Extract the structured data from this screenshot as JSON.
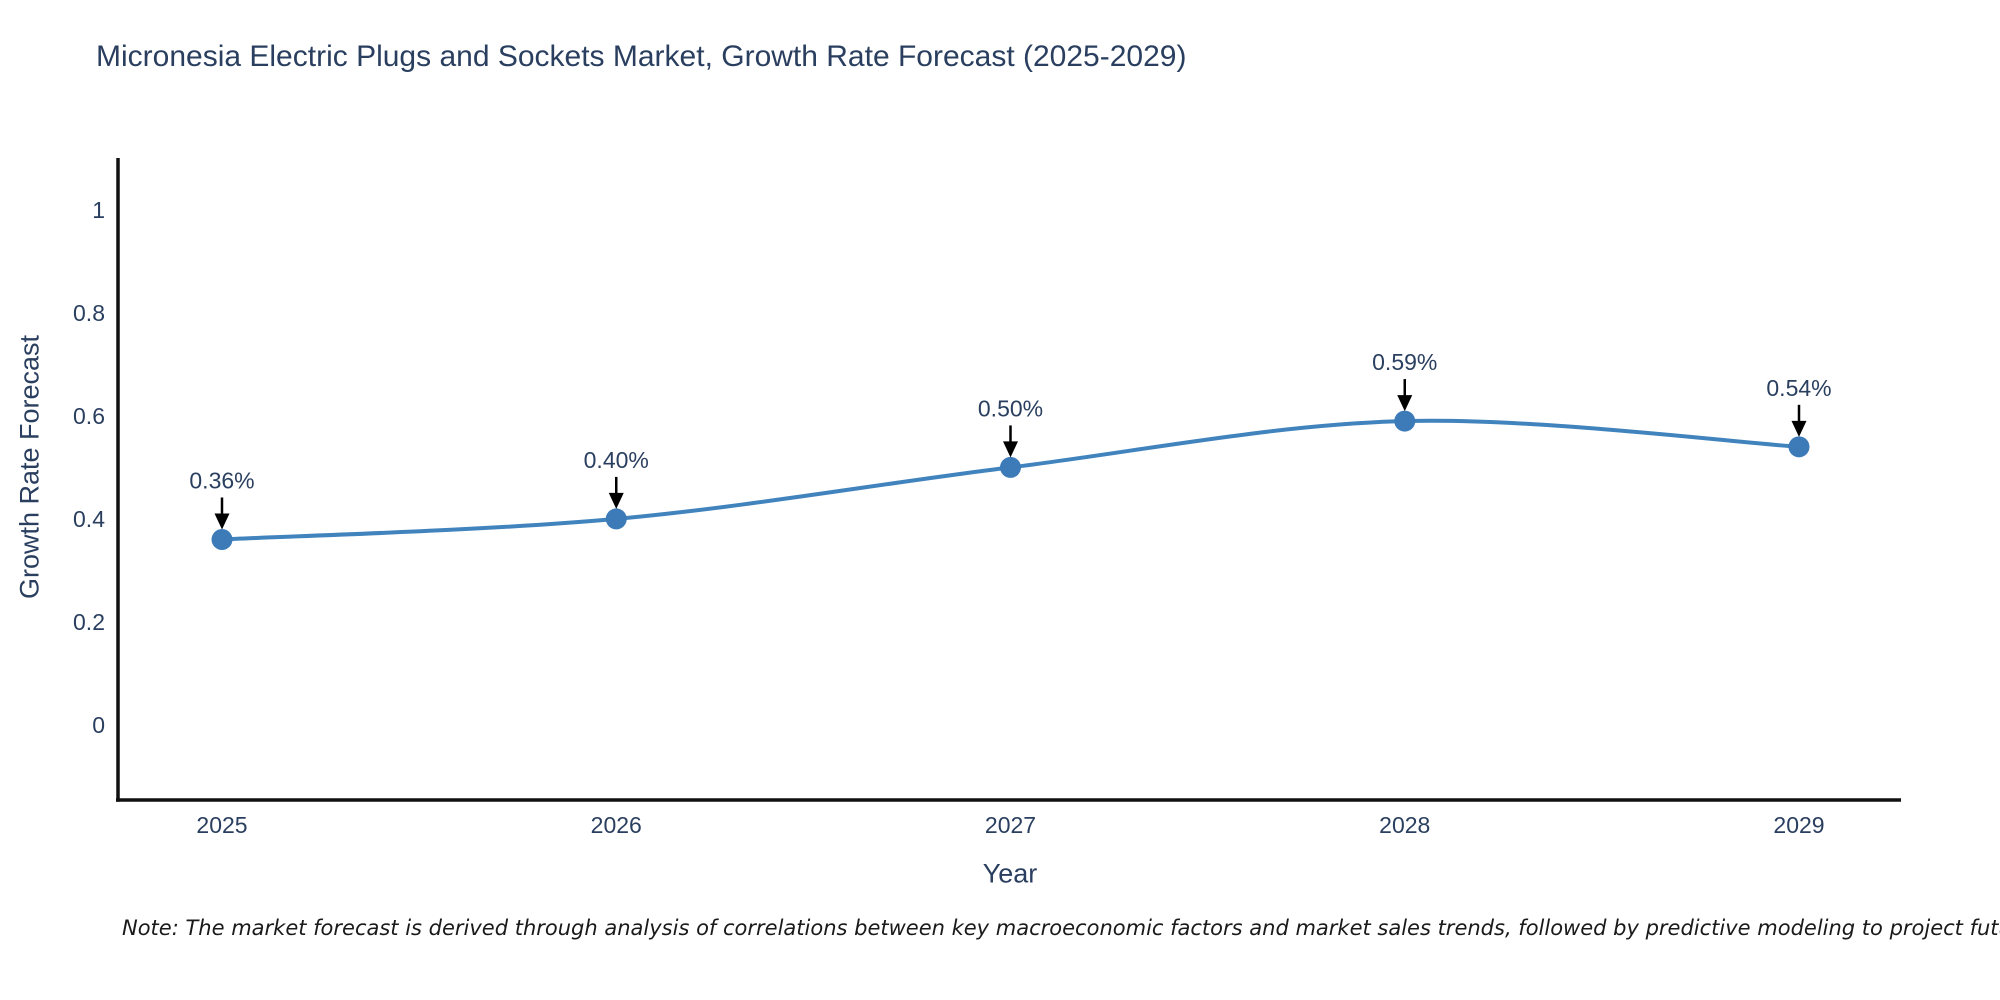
{
  "title": "Micronesia Electric Plugs and Sockets Market, Growth Rate Forecast (2025-2029)",
  "note": "Note: The market forecast is derived through analysis of correlations between key macroeconomic factors and market sales trends, followed by predictive modeling to project future sales",
  "chart_data": {
    "type": "line",
    "title": "Micronesia Electric Plugs and Sockets Market, Growth Rate Forecast (2025-2029)",
    "x": [
      2025,
      2026,
      2027,
      2028,
      2029
    ],
    "values": [
      0.36,
      0.4,
      0.5,
      0.59,
      0.54
    ],
    "point_labels": [
      "0.36%",
      "0.40%",
      "0.50%",
      "0.59%",
      "0.54%"
    ],
    "xlabel": "Year",
    "ylabel": "Growth Rate Forecast",
    "yticks": [
      0,
      0.2,
      0.4,
      0.6,
      0.8,
      1
    ],
    "ytick_labels": [
      "0",
      "0.2",
      "0.4",
      "0.6",
      "0.8",
      "1"
    ],
    "ylim": [
      -0.146,
      1.101
    ],
    "line_shape": "spline",
    "grid": false,
    "legend": "none",
    "colors": {
      "line": "#4183bd",
      "marker": "#3d7ab8",
      "axis": "#111111",
      "tick_text": "#2a3f5f",
      "annotation_text": "#2a3f5f",
      "annotation_arrow": "#000000"
    }
  }
}
